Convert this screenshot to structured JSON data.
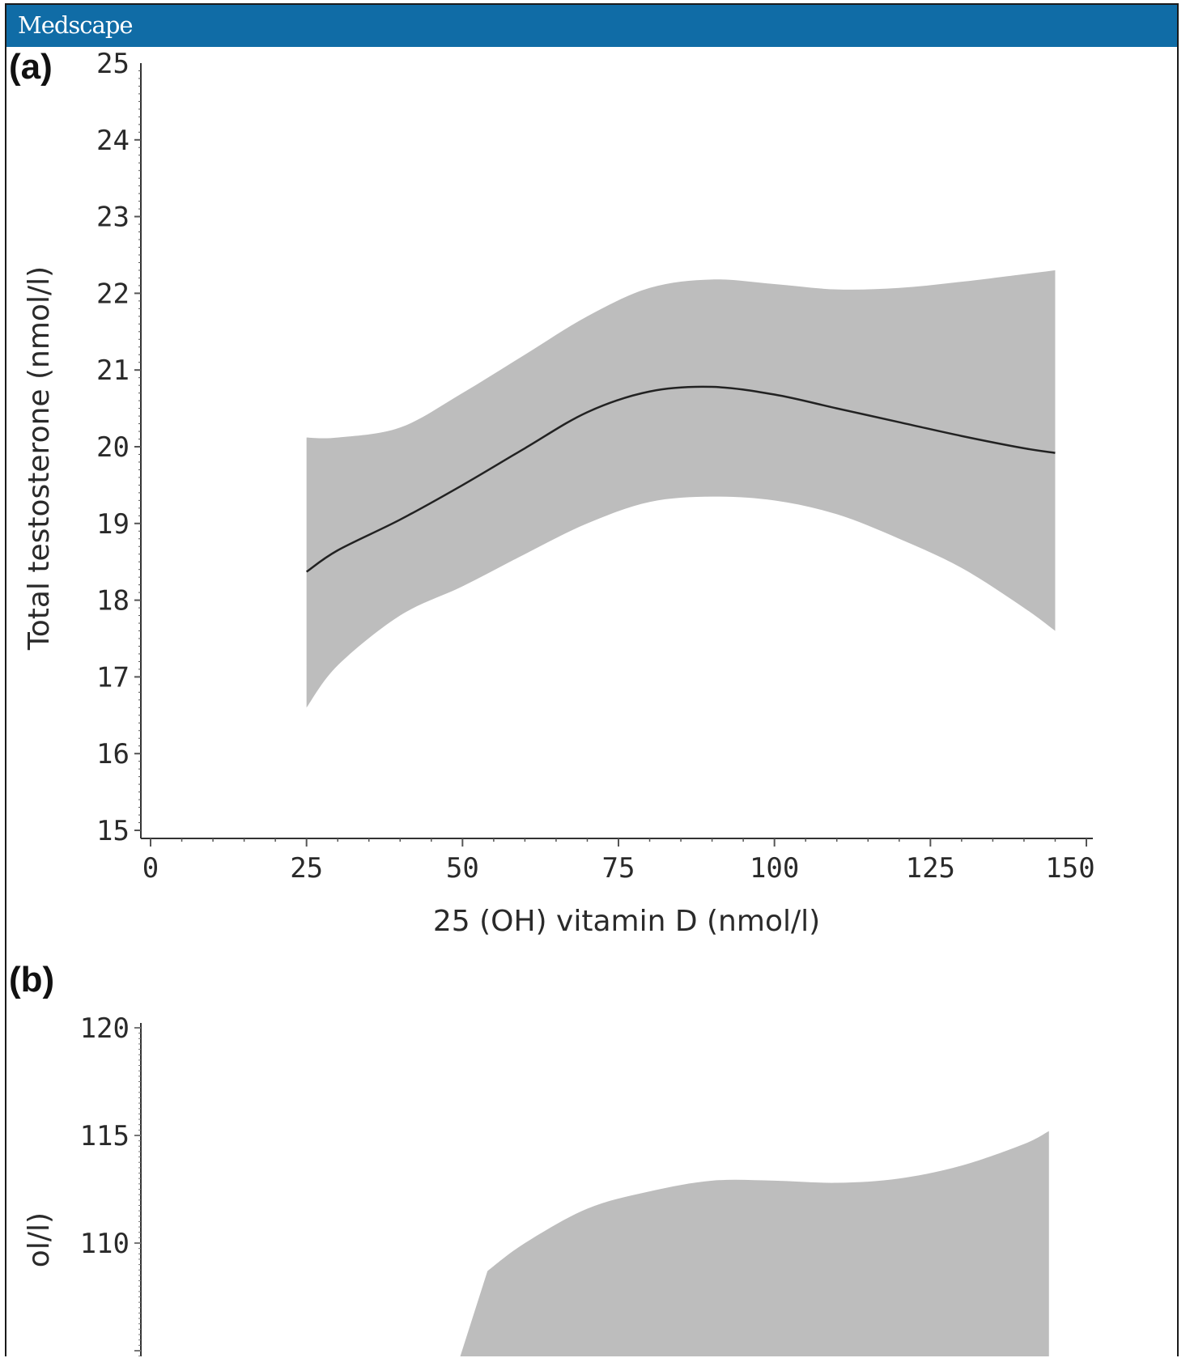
{
  "brand": "Medscape",
  "colors": {
    "header": "#106ca6",
    "band": "#bdbdbd",
    "line": "#222222"
  },
  "chart_data": [
    {
      "panel": "(a)",
      "type": "line",
      "xlabel": "25 (OH) vitamin D (nmol/l)",
      "ylabel": "Total testosterone (nmol/l)",
      "xlim": [
        0,
        150
      ],
      "ylim": [
        15,
        25
      ],
      "xticks": [
        "0",
        "25",
        "50",
        "75",
        "100",
        "125",
        "150"
      ],
      "yticks": [
        "15",
        "16",
        "17",
        "18",
        "19",
        "20",
        "21",
        "22",
        "23",
        "24",
        "25"
      ],
      "x": [
        25,
        30,
        40,
        50,
        60,
        70,
        80,
        90,
        100,
        110,
        120,
        130,
        140,
        145
      ],
      "series": [
        {
          "role": "estimate",
          "values": [
            18.37,
            18.65,
            19.05,
            19.5,
            19.98,
            20.45,
            20.72,
            20.78,
            20.68,
            20.5,
            20.32,
            20.14,
            19.98,
            19.92
          ]
        },
        {
          "role": "upper",
          "values": [
            20.12,
            20.12,
            20.25,
            20.7,
            21.2,
            21.7,
            22.07,
            22.18,
            22.12,
            22.05,
            22.07,
            22.15,
            22.25,
            22.3
          ]
        },
        {
          "role": "lower",
          "values": [
            16.6,
            17.15,
            17.8,
            18.18,
            18.6,
            19.0,
            19.28,
            19.35,
            19.3,
            19.12,
            18.8,
            18.42,
            17.9,
            17.6
          ]
        }
      ],
      "grid": false
    },
    {
      "panel": "(b)",
      "type": "line",
      "ylabel_visible": "ol/l)",
      "yticks": [
        "110",
        "115",
        "120"
      ],
      "ylim": [
        105,
        120
      ],
      "xlim": [
        0,
        150
      ],
      "x": [
        54,
        60,
        70,
        80,
        90,
        100,
        110,
        120,
        130,
        140,
        144
      ],
      "series": [
        {
          "role": "upper",
          "values": [
            108.7,
            110.0,
            111.6,
            112.4,
            112.9,
            112.9,
            112.8,
            113.0,
            113.6,
            114.6,
            115.2
          ]
        }
      ],
      "grid": false
    }
  ]
}
